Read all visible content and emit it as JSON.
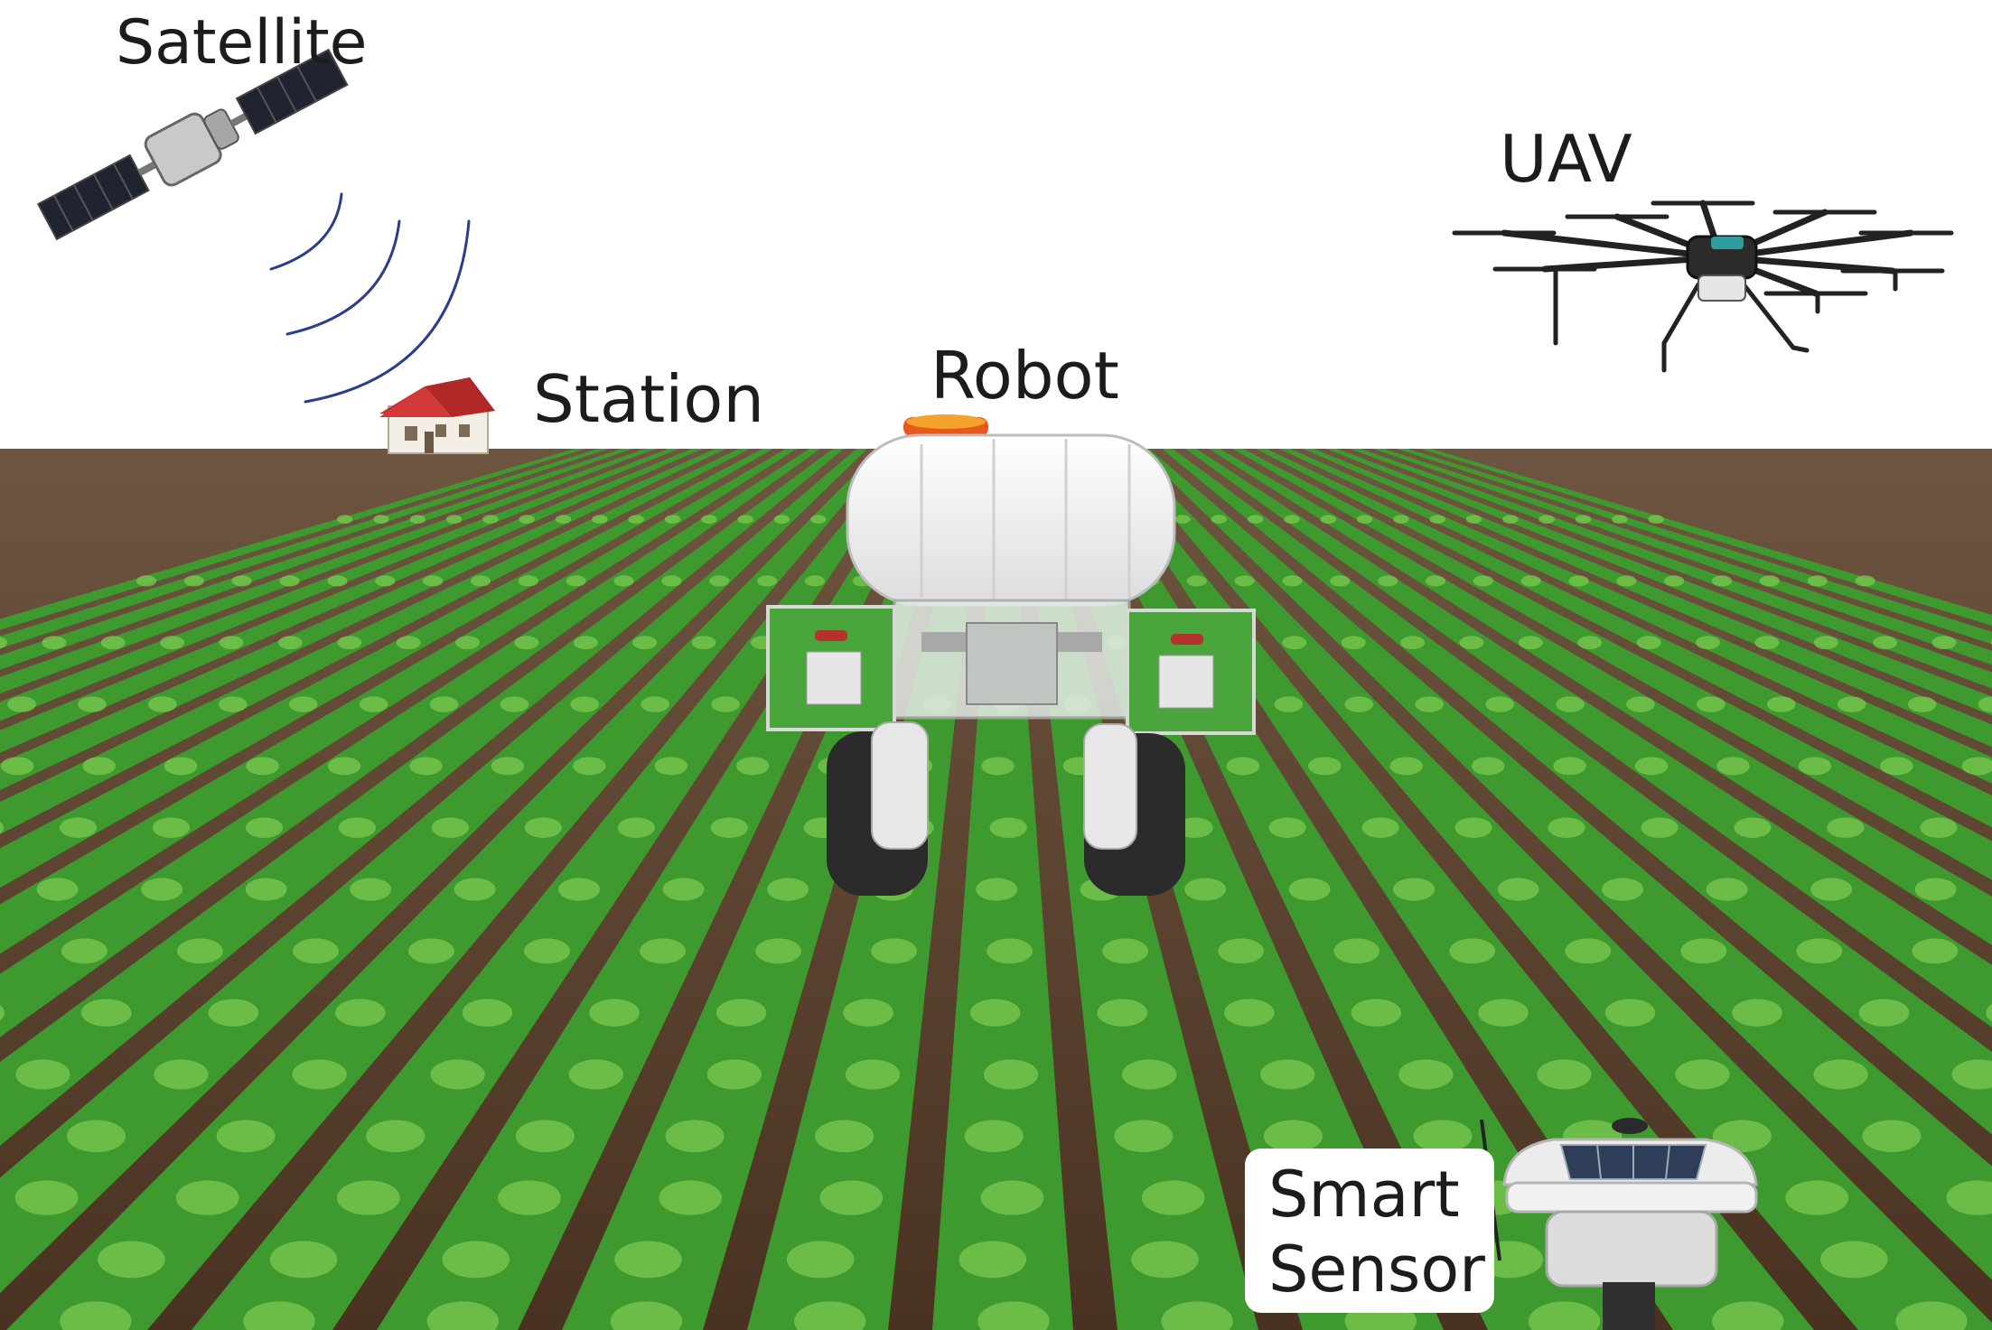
{
  "labels": {
    "satellite": "Satellite",
    "station": "Station",
    "robot": "Robot",
    "uav": "UAV",
    "smart_sensor_line1": "Smart",
    "smart_sensor_line2": "Sensor"
  },
  "colors": {
    "sky": "#ffffff",
    "soil": "#5b3f2c",
    "crop": "#3e9a2e",
    "crop_highlight": "#7cc850",
    "robot_panel": "#4aa63c",
    "tank": "#f2f2f2",
    "signal_waves": "#2a3d8f",
    "house_roof": "#c83232"
  },
  "icons": [
    "satellite-icon",
    "signal-waves-icon",
    "house-icon",
    "drone-icon",
    "robot-icon",
    "sensor-icon"
  ]
}
